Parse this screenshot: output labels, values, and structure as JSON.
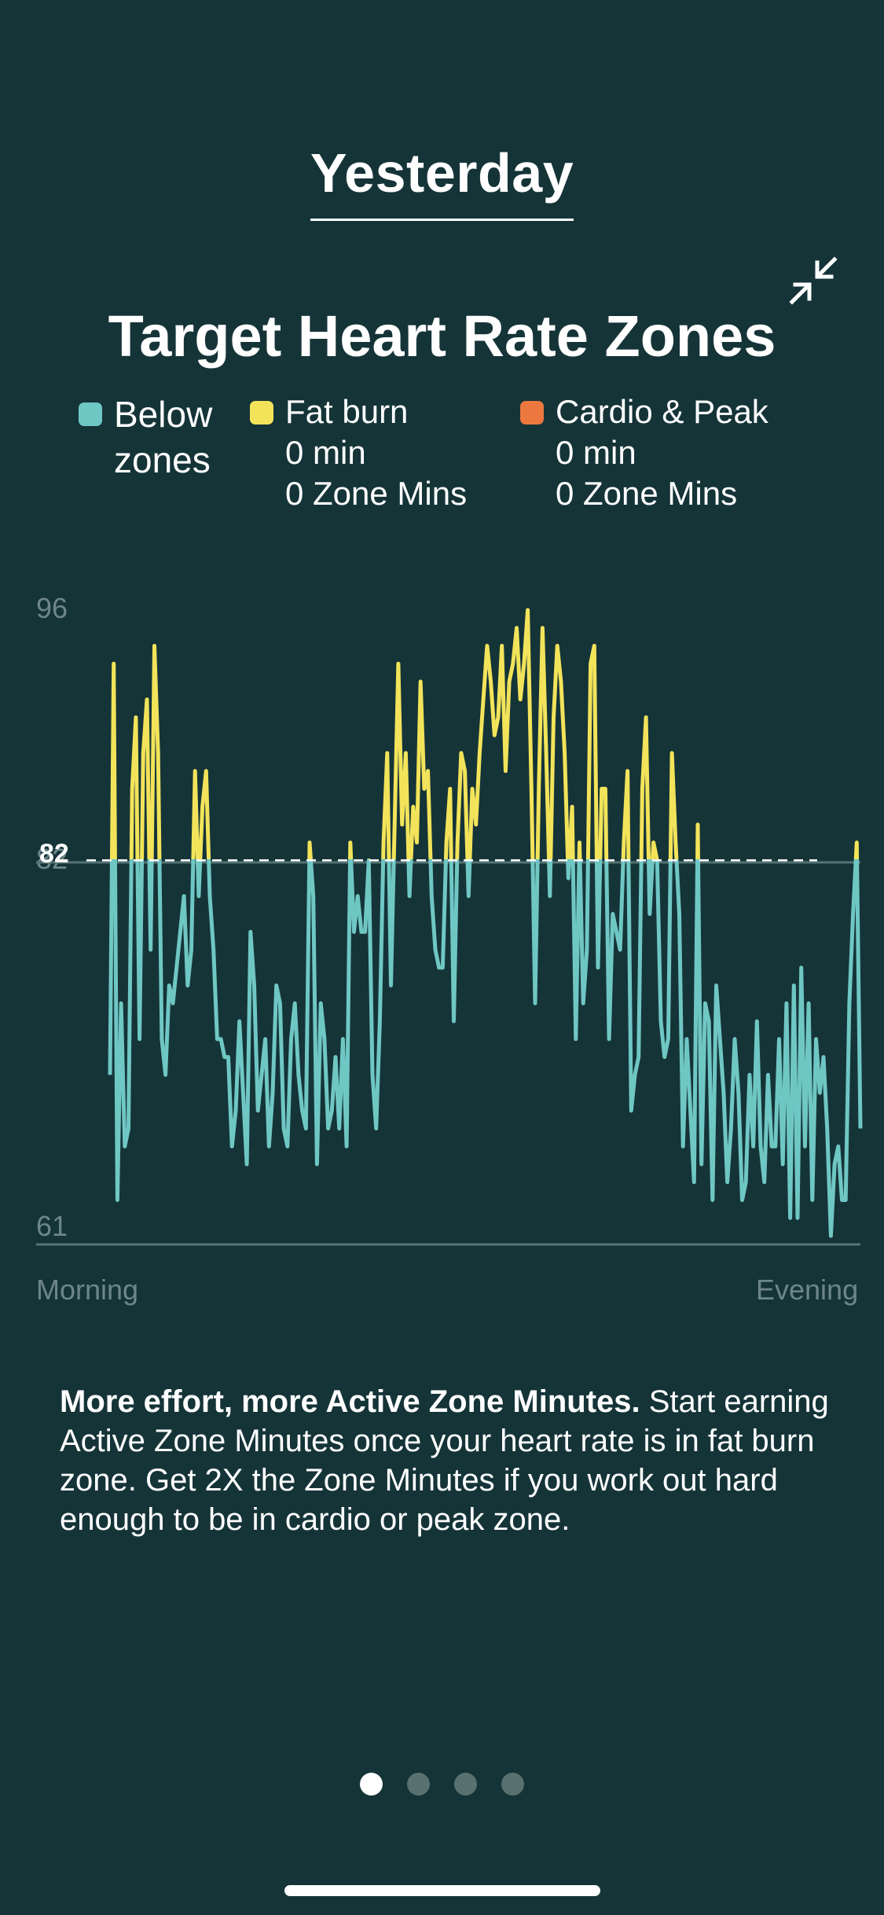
{
  "header": {
    "tab_label": "Yesterday"
  },
  "card": {
    "title": "Target Heart Rate Zones",
    "collapse_icon": "collapse-arrows-icon"
  },
  "legend": [
    {
      "label_line1": "Below",
      "label_line2": "zones",
      "color": "#6fc7c4"
    },
    {
      "label": "Fat burn",
      "minutes": "0 min",
      "zone_mins": "0 Zone Mins",
      "color": "#f2e35a"
    },
    {
      "label": "Cardio & Peak",
      "minutes": "0 min",
      "zone_mins": "0 Zone Mins",
      "color": "#ec7840"
    }
  ],
  "chart_data": {
    "type": "line",
    "ylim": [
      61,
      96
    ],
    "yticks": [
      "96",
      "82",
      "61"
    ],
    "threshold": 82,
    "threshold_label": "82",
    "x_labels": [
      "Morning",
      "Evening"
    ],
    "colors": {
      "below": "#6fc7c4",
      "fat_burn": "#f2e35a",
      "grid": "#557375",
      "threshold": "#ffffff"
    },
    "series": [
      {
        "values": [
          70,
          93,
          63,
          74,
          66,
          67,
          86,
          90,
          72,
          88,
          91,
          77,
          94,
          88,
          72,
          70,
          75,
          74,
          76,
          78,
          80,
          75,
          77,
          87,
          80,
          85,
          87,
          80,
          77,
          72,
          72,
          71,
          71,
          66,
          68,
          73,
          69,
          65,
          78,
          75,
          68,
          70,
          72,
          66,
          69,
          75,
          74,
          67,
          66,
          72,
          74,
          70,
          68,
          67,
          83,
          80,
          65,
          74,
          72,
          67,
          68,
          71,
          67,
          72,
          66,
          83,
          78,
          80,
          78,
          78,
          82,
          70,
          67,
          73,
          83,
          88,
          75,
          84,
          93,
          84,
          88,
          80,
          85,
          83,
          92,
          86,
          87,
          80,
          77,
          76,
          76,
          83,
          86,
          73,
          83,
          88,
          87,
          80,
          86,
          84,
          88,
          91,
          94,
          92,
          89,
          90,
          94,
          87,
          92,
          93,
          95,
          91,
          93,
          96,
          86,
          74,
          86,
          95,
          88,
          80,
          90,
          94,
          92,
          88,
          81,
          85,
          72,
          83,
          74,
          77,
          93,
          94,
          76,
          86,
          86,
          72,
          79,
          78,
          77,
          83,
          87,
          68,
          70,
          71,
          86,
          90,
          79,
          83,
          82,
          73,
          71,
          72,
          88,
          83,
          79,
          66,
          72,
          68,
          64,
          84,
          65,
          74,
          73,
          63,
          75,
          72,
          69,
          64,
          67,
          72,
          69,
          63,
          64,
          70,
          66,
          73,
          66,
          64,
          70,
          66,
          66,
          72,
          65,
          74,
          62,
          75,
          62,
          76,
          66,
          74,
          63,
          72,
          69,
          71,
          67,
          61,
          65,
          66,
          63,
          63,
          74,
          79,
          83,
          67
        ]
      }
    ]
  },
  "description": {
    "bold": "More effort, more Active Zone Minutes.",
    "body": "Start earning Active Zone Minutes once your heart rate is in fat burn zone. Get 2X the Zone Minutes if you work out hard enough to be in cardio or peak zone."
  },
  "pager": {
    "count": 4,
    "active": 0
  }
}
